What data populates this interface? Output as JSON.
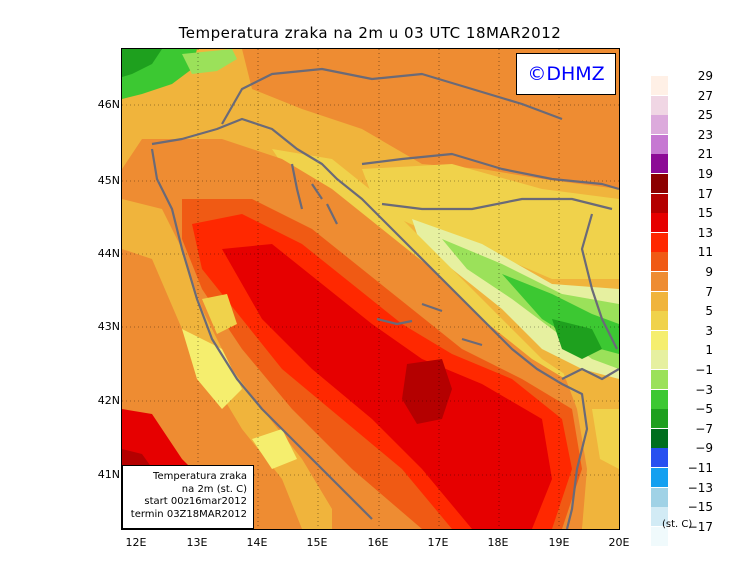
{
  "title": "Temperatura zraka na 2m u 03 UTC 18MAR2012",
  "stamp": "©DHMZ",
  "info_box": {
    "line1": "Temperatura zraka",
    "line2": "na 2m (st. C)",
    "line3": "start 00z16mar2012",
    "line4": "termin 03Z18MAR2012"
  },
  "lat_labels": [
    "46N",
    "45N",
    "44N",
    "43N",
    "42N",
    "41N"
  ],
  "lon_labels": [
    "12E",
    "13E",
    "14E",
    "15E",
    "16E",
    "17E",
    "18E",
    "19E",
    "20E"
  ],
  "legend": {
    "unit": "(st. C)",
    "levels": [
      {
        "label": "29",
        "color": "#fff0e6"
      },
      {
        "label": "27",
        "color": "#f0d6e4"
      },
      {
        "label": "25",
        "color": "#dcaadc"
      },
      {
        "label": "23",
        "color": "#c678d2"
      },
      {
        "label": "21",
        "color": "#8c0a96"
      },
      {
        "label": "19",
        "color": "#8c0000"
      },
      {
        "label": "17",
        "color": "#b40000"
      },
      {
        "label": "15",
        "color": "#e60000"
      },
      {
        "label": "13",
        "color": "#ff2800"
      },
      {
        "label": "11",
        "color": "#f05a14"
      },
      {
        "label": "9",
        "color": "#ee8c32"
      },
      {
        "label": "7",
        "color": "#f0b43c"
      },
      {
        "label": "5",
        "color": "#f0d24b"
      },
      {
        "label": "3",
        "color": "#f5ee6e"
      },
      {
        "label": "1",
        "color": "#e6f0a0"
      },
      {
        "label": "−1",
        "color": "#9be15a"
      },
      {
        "label": "−3",
        "color": "#3cc832"
      },
      {
        "label": "−5",
        "color": "#1ea01e"
      },
      {
        "label": "−7",
        "color": "#006e1e"
      },
      {
        "label": "−9",
        "color": "#2850f0"
      },
      {
        "label": "−11",
        "color": "#14a0f0"
      },
      {
        "label": "−13",
        "color": "#a0d2e6"
      },
      {
        "label": "−15",
        "color": "#d2ebf5"
      },
      {
        "label": "−17",
        "color": "#f0fafc"
      }
    ]
  }
}
